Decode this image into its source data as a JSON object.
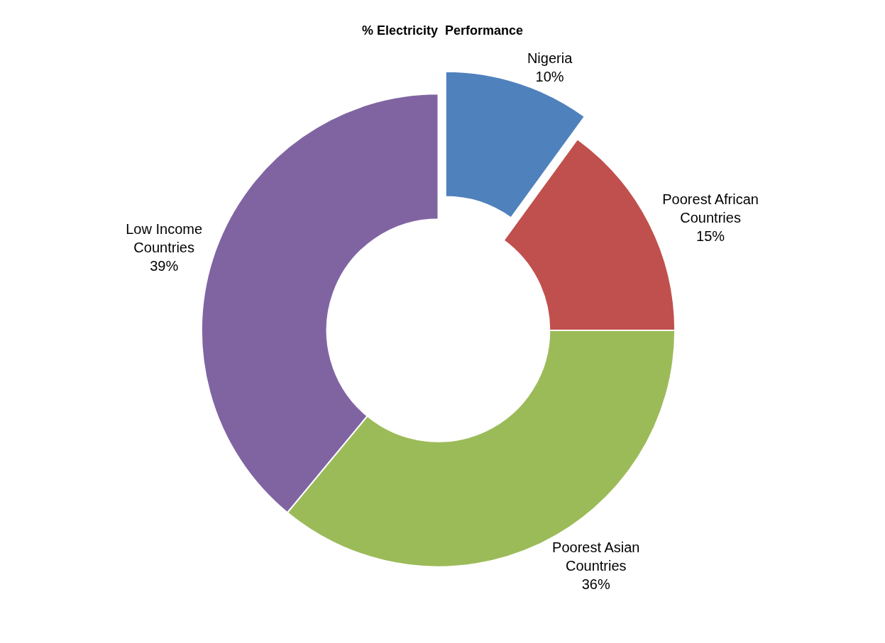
{
  "chart_data": {
    "type": "donut",
    "title": "% Electricity  Performance",
    "categories": [
      "Nigeria",
      "Poorest African Countries",
      "Poorest Asian Countries",
      "Low Income Countries"
    ],
    "values": [
      10,
      15,
      36,
      39
    ],
    "value_labels": [
      "10%",
      "15%",
      "36%",
      "39%"
    ],
    "colors": [
      "#4f81bd",
      "#c0504d",
      "#9bbb59",
      "#8064a2"
    ],
    "legend": false
  }
}
